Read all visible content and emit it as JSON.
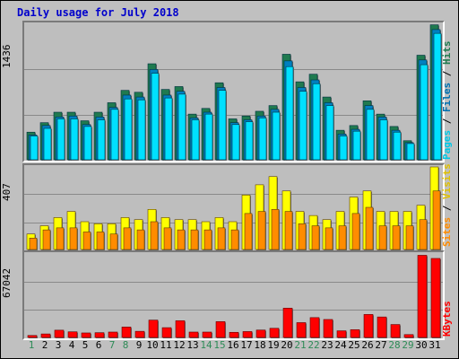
{
  "title": "Daily usage for July 2018",
  "chart_data": [
    {
      "type": "bar",
      "panel": "hits_files_pages",
      "ymax_label": "1436",
      "ylim": [
        0,
        1436
      ],
      "categories": [
        "1",
        "2",
        "3",
        "4",
        "5",
        "6",
        "7",
        "8",
        "9",
        "10",
        "11",
        "12",
        "13",
        "14",
        "15",
        "16",
        "17",
        "18",
        "19",
        "20",
        "21",
        "22",
        "23",
        "24",
        "25",
        "26",
        "27",
        "28",
        "29",
        "30",
        "31"
      ],
      "series": [
        {
          "name": "Hits",
          "values": [
            300,
            400,
            510,
            510,
            420,
            510,
            610,
            740,
            720,
            1020,
            750,
            780,
            490,
            550,
            820,
            440,
            470,
            520,
            580,
            1120,
            830,
            910,
            670,
            320,
            370,
            630,
            490,
            360,
            210,
            1110,
            1430
          ]
        },
        {
          "name": "Files",
          "values": [
            270,
            370,
            460,
            470,
            380,
            460,
            560,
            690,
            670,
            960,
            690,
            730,
            450,
            510,
            770,
            400,
            430,
            470,
            540,
            1050,
            770,
            850,
            610,
            280,
            330,
            580,
            460,
            320,
            190,
            1060,
            1380
          ]
        },
        {
          "name": "Pages",
          "values": [
            260,
            340,
            440,
            440,
            360,
            430,
            540,
            650,
            640,
            920,
            660,
            700,
            430,
            490,
            740,
            380,
            410,
            450,
            510,
            990,
            730,
            810,
            580,
            260,
            310,
            540,
            430,
            300,
            180,
            1010,
            1340
          ]
        }
      ],
      "legend": [
        "Pages",
        "Files",
        "Hits"
      ],
      "colors": {
        "Hits": "#1f7a4f",
        "Files": "#0080c0",
        "Pages": "#00e0ff"
      }
    },
    {
      "type": "bar",
      "panel": "visits_sites",
      "ymax_label": "407",
      "ylim": [
        0,
        407
      ],
      "categories": [
        "1",
        "2",
        "3",
        "4",
        "5",
        "6",
        "7",
        "8",
        "9",
        "10",
        "11",
        "12",
        "13",
        "14",
        "15",
        "16",
        "17",
        "18",
        "19",
        "20",
        "21",
        "22",
        "23",
        "24",
        "25",
        "26",
        "27",
        "28",
        "29",
        "30",
        "31"
      ],
      "series": [
        {
          "name": "Visits",
          "values": [
            80,
            120,
            160,
            190,
            140,
            130,
            130,
            160,
            150,
            200,
            160,
            150,
            150,
            140,
            160,
            140,
            270,
            320,
            360,
            290,
            190,
            170,
            150,
            190,
            260,
            290,
            190,
            190,
            190,
            220,
            407
          ]
        },
        {
          "name": "Sites",
          "values": [
            60,
            100,
            110,
            110,
            90,
            90,
            80,
            110,
            100,
            140,
            110,
            100,
            100,
            100,
            110,
            100,
            180,
            190,
            200,
            190,
            130,
            120,
            110,
            120,
            180,
            210,
            120,
            120,
            120,
            150,
            290
          ]
        }
      ],
      "legend": [
        "Sites",
        "Visits"
      ],
      "colors": {
        "Visits": "#ffff00",
        "Sites": "#ff8c00"
      }
    },
    {
      "type": "bar",
      "panel": "kbytes",
      "ymax_label": "67042",
      "ylim": [
        0,
        67042
      ],
      "categories": [
        "1",
        "2",
        "3",
        "4",
        "5",
        "6",
        "7",
        "8",
        "9",
        "10",
        "11",
        "12",
        "13",
        "14",
        "15",
        "16",
        "17",
        "18",
        "19",
        "20",
        "21",
        "22",
        "23",
        "24",
        "25",
        "26",
        "27",
        "28",
        "29",
        "30",
        "31"
      ],
      "series": [
        {
          "name": "KBytes",
          "values": [
            2300,
            3500,
            6500,
            5200,
            4300,
            4500,
            5000,
            9000,
            5600,
            14500,
            8500,
            14000,
            5000,
            5000,
            13300,
            4800,
            5400,
            6600,
            8000,
            24000,
            12500,
            16500,
            15000,
            6000,
            6900,
            19000,
            17000,
            11000,
            3000,
            66000,
            63500
          ]
        }
      ],
      "legend": [
        "KBytes"
      ],
      "colors": {
        "KBytes": "#ff0000"
      }
    }
  ],
  "weekend_days": [
    "1",
    "7",
    "8",
    "14",
    "15",
    "21",
    "22",
    "28",
    "29"
  ],
  "colors": {
    "weekday_label": "#000000",
    "weekend_label": "#2e8b57",
    "title": "#0000cc"
  }
}
